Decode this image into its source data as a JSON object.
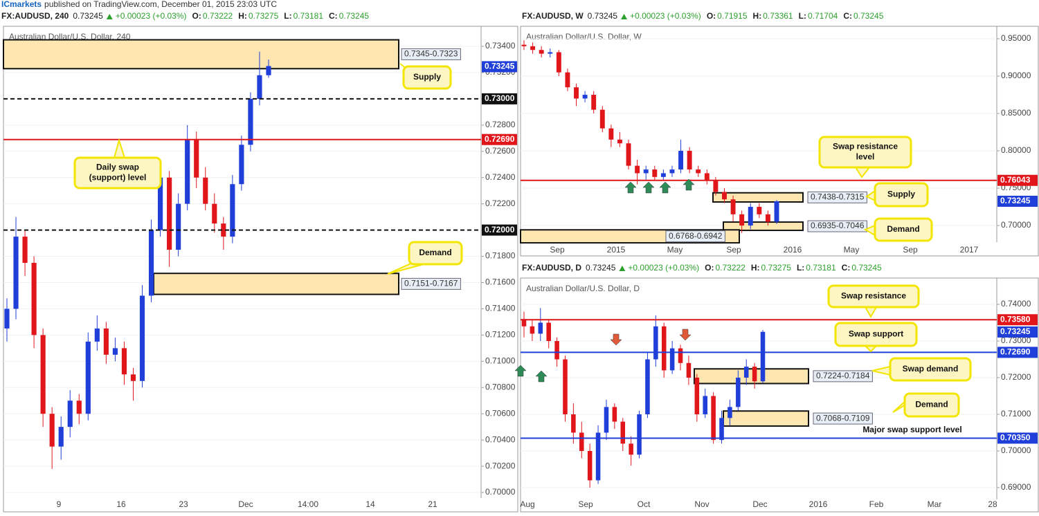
{
  "header": {
    "brand": "ICmarkets",
    "text": "published on TradingView.com, December 01, 2015 23:03 UTC"
  },
  "chart_data": [
    {
      "type": "candlestick",
      "symbol": "FX:AUDUSD, 240",
      "last": "0.73245",
      "change": "+0.00023 (+0.03%)",
      "ohlc": [
        [
          "O:",
          "0.73222"
        ],
        [
          "H:",
          "0.73275"
        ],
        [
          "L:",
          "0.73181"
        ],
        [
          "C:",
          "0.73245"
        ]
      ],
      "title": "Australian Dollar/U.S. Dollar, 240",
      "up_color": "#1f3fd8",
      "down_color": "#e0161b",
      "grid": true,
      "xlabels": [
        "9",
        "16",
        "23",
        "Dec",
        "14:00",
        "14",
        "21"
      ],
      "open": [
        0.7125,
        0.714,
        0.7195,
        0.7175,
        0.712,
        0.706,
        0.7035,
        0.705,
        0.707,
        0.706,
        0.7115,
        0.7125,
        0.7105,
        0.711,
        0.709,
        0.7085,
        0.715,
        0.72,
        0.724,
        0.7185,
        0.722,
        0.7269,
        0.724,
        0.722,
        0.7205,
        0.7195,
        0.7235,
        0.7265,
        0.73,
        0.7318
      ],
      "high": [
        0.7148,
        0.721,
        0.72,
        0.718,
        0.7125,
        0.7065,
        0.7058,
        0.7078,
        0.7075,
        0.7122,
        0.7135,
        0.713,
        0.7118,
        0.7115,
        0.7095,
        0.7158,
        0.7208,
        0.7248,
        0.7245,
        0.7228,
        0.728,
        0.7275,
        0.7248,
        0.7228,
        0.721,
        0.7242,
        0.7272,
        0.7305,
        0.7336,
        0.733
      ],
      "low": [
        0.7115,
        0.7132,
        0.7165,
        0.711,
        0.705,
        0.7018,
        0.7025,
        0.7042,
        0.7052,
        0.7055,
        0.7108,
        0.7098,
        0.71,
        0.7082,
        0.707,
        0.708,
        0.7145,
        0.7195,
        0.7172,
        0.718,
        0.7215,
        0.7232,
        0.7215,
        0.7198,
        0.7185,
        0.719,
        0.723,
        0.726,
        0.7295,
        0.7316
      ],
      "close": [
        0.714,
        0.7195,
        0.7175,
        0.712,
        0.706,
        0.7035,
        0.705,
        0.707,
        0.706,
        0.7115,
        0.7125,
        0.7105,
        0.711,
        0.709,
        0.7085,
        0.715,
        0.72,
        0.724,
        0.7185,
        0.722,
        0.7269,
        0.724,
        0.722,
        0.7205,
        0.7195,
        0.7235,
        0.7265,
        0.73,
        0.7318,
        0.7325
      ],
      "ylim": [
        0.69958,
        0.73553
      ],
      "yticks": [
        {
          "value": 0.7,
          "label": "0.70000"
        },
        {
          "value": 0.702,
          "label": "0.70200"
        },
        {
          "value": 0.704,
          "label": "0.70400"
        },
        {
          "value": 0.706,
          "label": "0.70600"
        },
        {
          "value": 0.708,
          "label": "0.70800"
        },
        {
          "value": 0.71,
          "label": "0.71000"
        },
        {
          "value": 0.712,
          "label": "0.71200"
        },
        {
          "value": 0.714,
          "label": "0.71400"
        },
        {
          "value": 0.716,
          "label": "0.71600"
        },
        {
          "value": 0.718,
          "label": "0.71800"
        },
        {
          "value": 0.72,
          "label": "0.72000"
        },
        {
          "value": 0.722,
          "label": "0.72200"
        },
        {
          "value": 0.724,
          "label": "0.72400"
        },
        {
          "value": 0.726,
          "label": "0.72600"
        },
        {
          "value": 0.728,
          "label": "0.72800"
        },
        {
          "value": 0.73,
          "label": "0.73000"
        },
        {
          "value": 0.732,
          "label": "0.73200"
        },
        {
          "value": 0.734,
          "label": "0.73400"
        }
      ],
      "levels": [
        {
          "value": 0.73,
          "label": "0.73000",
          "color": "#111111",
          "line": "dashed"
        },
        {
          "value": 0.7269,
          "label": "0.72690",
          "color": "#e0161b",
          "line": "solid"
        },
        {
          "value": 0.72,
          "label": "0.72000",
          "color": "#111111",
          "line": "dashed"
        },
        {
          "value": 0.73245,
          "label": "0.73245",
          "color": "#1f3fd8",
          "line": "none"
        }
      ],
      "zones": [
        {
          "from": 0.7345,
          "to": 0.7323,
          "label": "0.7345-0.7323"
        },
        {
          "from": 0.7167,
          "to": 0.7151,
          "label": "0.7151-0.7167"
        }
      ],
      "zone_color": "#fde6b0",
      "annotations": [
        "Supply",
        "Daily swap\n(support) level",
        "Demand"
      ]
    },
    {
      "type": "candlestick",
      "symbol": "FX:AUDUSD, W",
      "last": "0.73245",
      "change": "+0.00023 (+0.03%)",
      "ohlc": [
        [
          "O:",
          "0.71915"
        ],
        [
          "H:",
          "0.73361"
        ],
        [
          "L:",
          "0.71704"
        ],
        [
          "C:",
          "0.73245"
        ]
      ],
      "title": "Australian Dollar/U.S. Dollar, W",
      "up_color": "#1f3fd8",
      "down_color": "#e0161b",
      "grid": true,
      "xlabels": [
        "Sep",
        "2015",
        "May",
        "Sep",
        "2016",
        "May",
        "Sep",
        "2017"
      ],
      "open": [
        0.942,
        0.94,
        0.935,
        0.93,
        0.932,
        0.905,
        0.885,
        0.87,
        0.875,
        0.855,
        0.83,
        0.815,
        0.81,
        0.78,
        0.77,
        0.775,
        0.765,
        0.77,
        0.775,
        0.8,
        0.775,
        0.77,
        0.76,
        0.745,
        0.735,
        0.715,
        0.7,
        0.725,
        0.715,
        0.705
      ],
      "high": [
        0.948,
        0.945,
        0.94,
        0.937,
        0.935,
        0.91,
        0.89,
        0.88,
        0.88,
        0.86,
        0.835,
        0.825,
        0.815,
        0.788,
        0.78,
        0.78,
        0.775,
        0.78,
        0.815,
        0.805,
        0.78,
        0.775,
        0.765,
        0.75,
        0.74,
        0.72,
        0.73,
        0.73,
        0.72,
        0.734
      ],
      "low": [
        0.935,
        0.93,
        0.925,
        0.925,
        0.9,
        0.88,
        0.86,
        0.865,
        0.85,
        0.825,
        0.805,
        0.805,
        0.775,
        0.755,
        0.76,
        0.76,
        0.76,
        0.765,
        0.77,
        0.77,
        0.765,
        0.755,
        0.74,
        0.73,
        0.705,
        0.69,
        0.695,
        0.71,
        0.7,
        0.702
      ],
      "close": [
        0.94,
        0.935,
        0.93,
        0.932,
        0.905,
        0.885,
        0.87,
        0.875,
        0.855,
        0.83,
        0.815,
        0.81,
        0.78,
        0.77,
        0.775,
        0.765,
        0.77,
        0.775,
        0.8,
        0.775,
        0.77,
        0.76,
        0.745,
        0.735,
        0.715,
        0.7,
        0.725,
        0.715,
        0.705,
        0.7325
      ],
      "ylim": [
        0.6778,
        0.9667
      ],
      "yticks": [
        {
          "value": 0.7,
          "label": "0.70000"
        },
        {
          "value": 0.75,
          "label": "0.75000"
        },
        {
          "value": 0.8,
          "label": "0.80000"
        },
        {
          "value": 0.85,
          "label": "0.85000"
        },
        {
          "value": 0.9,
          "label": "0.90000"
        },
        {
          "value": 0.95,
          "label": "0.95000"
        }
      ],
      "levels": [
        {
          "value": 0.76043,
          "label": "0.76043",
          "color": "#e0161b",
          "line": "solid"
        },
        {
          "value": 0.73245,
          "label": "0.73245",
          "color": "#1f3fd8",
          "line": "none"
        }
      ],
      "zones": [
        {
          "from": 0.7438,
          "to": 0.7315,
          "label": "0.7438-0.7315"
        },
        {
          "from": 0.7046,
          "to": 0.6935,
          "label": "0.6935-0.7046"
        },
        {
          "from": 0.6942,
          "to": 0.6768,
          "label": "0.6768-0.6942"
        }
      ],
      "zone_color": "#fde6b0",
      "annotations": [
        "Swap resistance\nlevel",
        "Supply",
        "Demand"
      ]
    },
    {
      "type": "candlestick",
      "symbol": "FX:AUDUSD, D",
      "last": "0.73245",
      "change": "+0.00023 (+0.03%)",
      "ohlc": [
        [
          "O:",
          "0.73222"
        ],
        [
          "H:",
          "0.73275"
        ],
        [
          "L:",
          "0.73181"
        ],
        [
          "C:",
          "0.73245"
        ]
      ],
      "title": "Australian Dollar/U.S. Dollar, D",
      "up_color": "#1f3fd8",
      "down_color": "#e0161b",
      "grid": true,
      "xlabels": [
        "Aug",
        "Sep",
        "Oct",
        "Nov",
        "Dec",
        "2016",
        "Feb",
        "Mar",
        "28"
      ],
      "open": [
        0.736,
        0.734,
        0.732,
        0.735,
        0.73,
        0.725,
        0.71,
        0.705,
        0.7,
        0.692,
        0.705,
        0.712,
        0.708,
        0.702,
        0.699,
        0.71,
        0.725,
        0.734,
        0.722,
        0.728,
        0.724,
        0.72,
        0.71,
        0.715,
        0.703,
        0.709,
        0.712,
        0.72,
        0.723,
        0.719
      ],
      "high": [
        0.738,
        0.736,
        0.739,
        0.736,
        0.731,
        0.726,
        0.713,
        0.708,
        0.702,
        0.707,
        0.714,
        0.713,
        0.709,
        0.704,
        0.711,
        0.727,
        0.737,
        0.735,
        0.73,
        0.729,
        0.726,
        0.721,
        0.717,
        0.716,
        0.711,
        0.714,
        0.722,
        0.725,
        0.724,
        0.733
      ],
      "low": [
        0.731,
        0.73,
        0.73,
        0.728,
        0.723,
        0.708,
        0.702,
        0.698,
        0.69,
        0.691,
        0.703,
        0.706,
        0.7,
        0.696,
        0.698,
        0.709,
        0.723,
        0.72,
        0.721,
        0.722,
        0.718,
        0.708,
        0.709,
        0.702,
        0.702,
        0.707,
        0.711,
        0.718,
        0.717,
        0.7185
      ],
      "close": [
        0.734,
        0.732,
        0.735,
        0.73,
        0.725,
        0.71,
        0.705,
        0.7,
        0.692,
        0.705,
        0.712,
        0.708,
        0.702,
        0.699,
        0.71,
        0.725,
        0.734,
        0.722,
        0.728,
        0.724,
        0.72,
        0.71,
        0.715,
        0.703,
        0.709,
        0.712,
        0.72,
        0.723,
        0.719,
        0.7325
      ],
      "ylim": [
        0.68679,
        0.74717
      ],
      "yticks": [
        {
          "value": 0.69,
          "label": "0.69000"
        },
        {
          "value": 0.7,
          "label": "0.70000"
        },
        {
          "value": 0.71,
          "label": "0.71000"
        },
        {
          "value": 0.72,
          "label": "0.72000"
        },
        {
          "value": 0.73,
          "label": "0.73000"
        },
        {
          "value": 0.74,
          "label": "0.74000"
        }
      ],
      "levels": [
        {
          "value": 0.7358,
          "label": "0.73580",
          "color": "#e0161b",
          "line": "solid"
        },
        {
          "value": 0.7269,
          "label": "0.72690",
          "color": "#1f3fd8",
          "line": "solid"
        },
        {
          "value": 0.7035,
          "label": "0.70350",
          "color": "#1f3fd8",
          "line": "solid"
        },
        {
          "value": 0.73245,
          "label": "0.73245",
          "color": "#1f3fd8",
          "line": "none"
        }
      ],
      "zones": [
        {
          "from": 0.7224,
          "to": 0.7184,
          "label": "0.7224-0.7184"
        },
        {
          "from": 0.7109,
          "to": 0.7068,
          "label": "0.7068-0.7109"
        }
      ],
      "zone_color": "#fde6b0",
      "annotations": [
        "Swap resistance",
        "Swap support",
        "Swap demand",
        "Demand",
        "Major swap support level"
      ]
    }
  ]
}
